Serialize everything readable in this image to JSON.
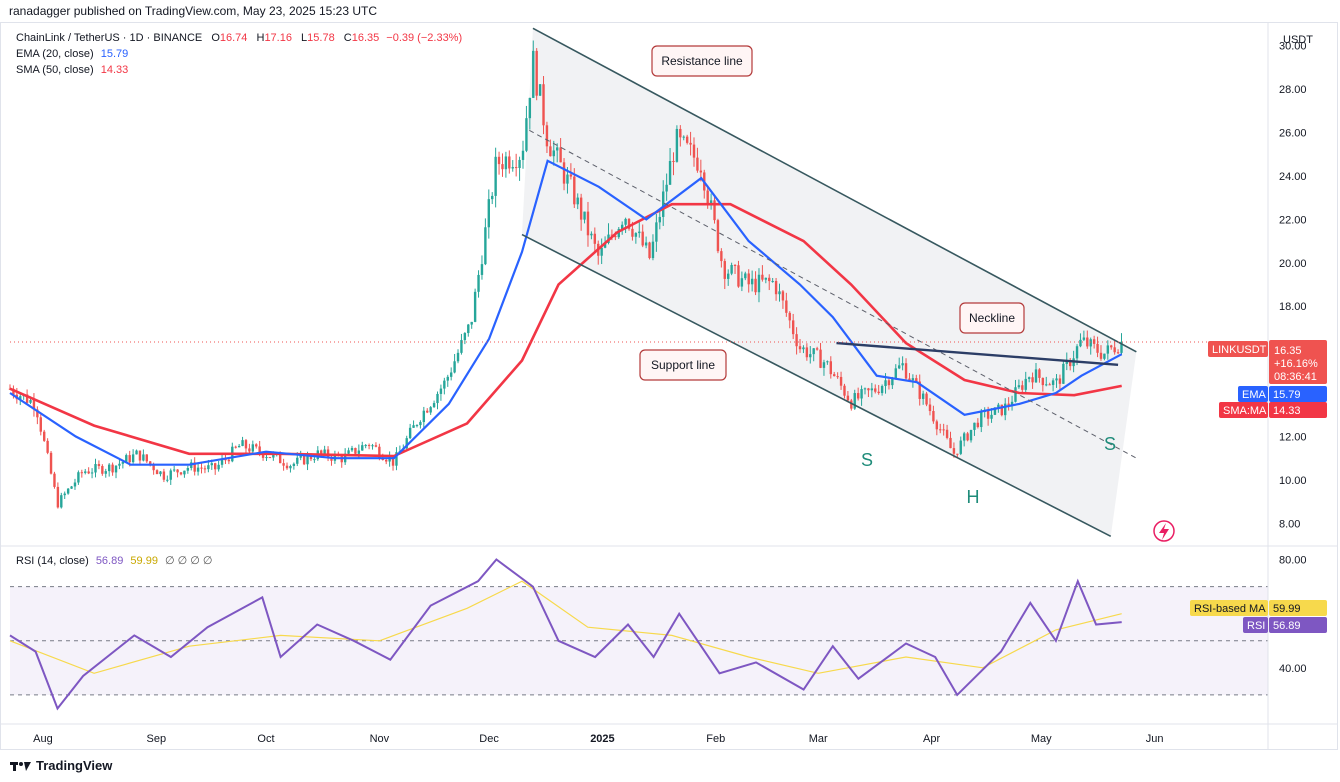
{
  "header": {
    "publisher": "ranadagger published on TradingView.com, May 23, 2025 15:23 UTC"
  },
  "legend": {
    "symbol": "ChainLink / TetherUS · 1D · BINANCE",
    "o": "16.74",
    "h": "17.16",
    "l": "15.78",
    "c": "16.35",
    "chg": "−0.39 (−2.33%)",
    "ema_label": "EMA (20, close)",
    "ema_value": "15.79",
    "sma_label": "SMA (50, close)",
    "sma_value": "14.33",
    "rsi_label": "RSI (14, close)",
    "rsi_value": "56.89",
    "rsi_ma_value": "59.99",
    "rsi_extra": "∅ ∅ ∅ ∅"
  },
  "currency": "USDT",
  "footer": {
    "brand": "TradingView"
  },
  "colors": {
    "up": "#26a69a",
    "down": "#ef5350",
    "ema": "#2962ff",
    "sma": "#f23645",
    "rsi": "#7e57c2",
    "rsi_ma": "#f7d94c",
    "channel": "#37585f"
  },
  "badges": {
    "symbol_label": "LINKUSDT",
    "price": "16.35",
    "change": "+16.16%",
    "countdown": "08:36:41",
    "ema": "EMA",
    "ema_val": "15.79",
    "sma": "SMA:MA",
    "sma_val": "14.33",
    "rsi_ma": "RSI-based MA",
    "rsi_ma_val": "59.99",
    "rsi": "RSI",
    "rsi_val": "56.89"
  },
  "annotations": {
    "resistance": "Resistance line",
    "support": "Support line",
    "neckline": "Neckline",
    "s1": "S",
    "h": "H",
    "s2": "S"
  },
  "chart_data": {
    "type": "line",
    "price_axis": {
      "ticks": [
        8.0,
        10.0,
        12.0,
        14.0,
        16.0,
        18.0,
        20.0,
        22.0,
        24.0,
        26.0,
        28.0,
        30.0
      ],
      "range": [
        7.0,
        31.0
      ]
    },
    "rsi_axis": {
      "ticks": [
        40.0,
        80.0
      ],
      "range": [
        20,
        85
      ],
      "bands": [
        30,
        70,
        50
      ]
    },
    "x_ticks": [
      "Aug",
      "Sep",
      "Oct",
      "Nov",
      "Dec",
      "2025",
      "Feb",
      "Mar",
      "Apr",
      "May",
      "Jun"
    ],
    "close_series": [
      {
        "date": "2024-07-23",
        "v": 14.2
      },
      {
        "date": "2024-07-30",
        "v": 13.5
      },
      {
        "date": "2024-08-05",
        "v": 8.9
      },
      {
        "date": "2024-08-12",
        "v": 10.4
      },
      {
        "date": "2024-08-20",
        "v": 10.6
      },
      {
        "date": "2024-08-27",
        "v": 11.2
      },
      {
        "date": "2024-09-03",
        "v": 10.2
      },
      {
        "date": "2024-09-10",
        "v": 10.6
      },
      {
        "date": "2024-09-17",
        "v": 10.5
      },
      {
        "date": "2024-09-24",
        "v": 11.6
      },
      {
        "date": "2024-10-01",
        "v": 11.2
      },
      {
        "date": "2024-10-08",
        "v": 10.7
      },
      {
        "date": "2024-10-15",
        "v": 11.2
      },
      {
        "date": "2024-10-22",
        "v": 11.0
      },
      {
        "date": "2024-10-29",
        "v": 11.7
      },
      {
        "date": "2024-11-05",
        "v": 10.8
      },
      {
        "date": "2024-11-12",
        "v": 12.9
      },
      {
        "date": "2024-11-19",
        "v": 14.5
      },
      {
        "date": "2024-11-26",
        "v": 17.2
      },
      {
        "date": "2024-12-03",
        "v": 24.6
      },
      {
        "date": "2024-12-10",
        "v": 25.1
      },
      {
        "date": "2024-12-13",
        "v": 29.3
      },
      {
        "date": "2024-12-17",
        "v": 25.7
      },
      {
        "date": "2024-12-24",
        "v": 23.2
      },
      {
        "date": "2024-12-31",
        "v": 20.2
      },
      {
        "date": "2025-01-07",
        "v": 22.3
      },
      {
        "date": "2025-01-14",
        "v": 20.2
      },
      {
        "date": "2025-01-21",
        "v": 25.6
      },
      {
        "date": "2025-01-28",
        "v": 24.6
      },
      {
        "date": "2025-02-03",
        "v": 19.8
      },
      {
        "date": "2025-02-10",
        "v": 19.0
      },
      {
        "date": "2025-02-17",
        "v": 19.1
      },
      {
        "date": "2025-02-24",
        "v": 16.1
      },
      {
        "date": "2025-03-03",
        "v": 15.4
      },
      {
        "date": "2025-03-10",
        "v": 13.6
      },
      {
        "date": "2025-03-17",
        "v": 14.2
      },
      {
        "date": "2025-03-24",
        "v": 15.3
      },
      {
        "date": "2025-03-31",
        "v": 13.4
      },
      {
        "date": "2025-04-07",
        "v": 11.2
      },
      {
        "date": "2025-04-14",
        "v": 12.8
      },
      {
        "date": "2025-04-21",
        "v": 13.3
      },
      {
        "date": "2025-04-28",
        "v": 14.9
      },
      {
        "date": "2025-05-05",
        "v": 14.4
      },
      {
        "date": "2025-05-12",
        "v": 16.4
      },
      {
        "date": "2025-05-18",
        "v": 15.8
      },
      {
        "date": "2025-05-23",
        "v": 16.35
      }
    ],
    "ema20": [
      {
        "date": "2024-07-23",
        "v": 14.0
      },
      {
        "date": "2024-08-10",
        "v": 12.0
      },
      {
        "date": "2024-08-25",
        "v": 10.7
      },
      {
        "date": "2024-09-10",
        "v": 10.7
      },
      {
        "date": "2024-10-01",
        "v": 11.3
      },
      {
        "date": "2024-10-20",
        "v": 11.0
      },
      {
        "date": "2024-11-05",
        "v": 11.0
      },
      {
        "date": "2024-11-20",
        "v": 13.5
      },
      {
        "date": "2024-12-01",
        "v": 16.5
      },
      {
        "date": "2024-12-10",
        "v": 20.5
      },
      {
        "date": "2024-12-17",
        "v": 24.7
      },
      {
        "date": "2024-12-31",
        "v": 23.5
      },
      {
        "date": "2025-01-13",
        "v": 22.0
      },
      {
        "date": "2025-01-28",
        "v": 23.9
      },
      {
        "date": "2025-02-10",
        "v": 21.0
      },
      {
        "date": "2025-02-24",
        "v": 19.0
      },
      {
        "date": "2025-03-05",
        "v": 17.5
      },
      {
        "date": "2025-03-17",
        "v": 14.8
      },
      {
        "date": "2025-03-28",
        "v": 14.5
      },
      {
        "date": "2025-04-10",
        "v": 13.0
      },
      {
        "date": "2025-04-25",
        "v": 13.5
      },
      {
        "date": "2025-05-05",
        "v": 14.0
      },
      {
        "date": "2025-05-12",
        "v": 14.8
      },
      {
        "date": "2025-05-23",
        "v": 15.79
      }
    ],
    "sma50": [
      {
        "date": "2024-07-23",
        "v": 14.2
      },
      {
        "date": "2024-08-15",
        "v": 12.5
      },
      {
        "date": "2024-09-10",
        "v": 11.2
      },
      {
        "date": "2024-10-05",
        "v": 11.2
      },
      {
        "date": "2024-11-05",
        "v": 11.1
      },
      {
        "date": "2024-11-25",
        "v": 12.6
      },
      {
        "date": "2024-12-10",
        "v": 15.5
      },
      {
        "date": "2024-12-20",
        "v": 19.0
      },
      {
        "date": "2025-01-05",
        "v": 21.4
      },
      {
        "date": "2025-01-20",
        "v": 22.7
      },
      {
        "date": "2025-02-05",
        "v": 22.7
      },
      {
        "date": "2025-02-25",
        "v": 21.0
      },
      {
        "date": "2025-03-10",
        "v": 19.0
      },
      {
        "date": "2025-03-25",
        "v": 16.3
      },
      {
        "date": "2025-04-10",
        "v": 14.6
      },
      {
        "date": "2025-04-25",
        "v": 14.0
      },
      {
        "date": "2025-05-10",
        "v": 13.9
      },
      {
        "date": "2025-05-23",
        "v": 14.33
      }
    ],
    "rsi14": [
      {
        "date": "2024-07-23",
        "v": 52
      },
      {
        "date": "2024-07-30",
        "v": 46
      },
      {
        "date": "2024-08-05",
        "v": 25
      },
      {
        "date": "2024-08-12",
        "v": 37
      },
      {
        "date": "2024-08-26",
        "v": 52
      },
      {
        "date": "2024-09-05",
        "v": 44
      },
      {
        "date": "2024-09-15",
        "v": 55
      },
      {
        "date": "2024-09-30",
        "v": 66
      },
      {
        "date": "2024-10-05",
        "v": 44
      },
      {
        "date": "2024-10-15",
        "v": 56
      },
      {
        "date": "2024-10-25",
        "v": 50
      },
      {
        "date": "2024-11-04",
        "v": 43
      },
      {
        "date": "2024-11-15",
        "v": 63
      },
      {
        "date": "2024-11-28",
        "v": 72
      },
      {
        "date": "2024-12-03",
        "v": 80
      },
      {
        "date": "2024-12-13",
        "v": 70
      },
      {
        "date": "2024-12-20",
        "v": 50
      },
      {
        "date": "2024-12-30",
        "v": 44
      },
      {
        "date": "2025-01-08",
        "v": 56
      },
      {
        "date": "2025-01-15",
        "v": 44
      },
      {
        "date": "2025-01-22",
        "v": 60
      },
      {
        "date": "2025-02-02",
        "v": 38
      },
      {
        "date": "2025-02-12",
        "v": 42
      },
      {
        "date": "2025-02-25",
        "v": 32
      },
      {
        "date": "2025-03-05",
        "v": 48
      },
      {
        "date": "2025-03-12",
        "v": 36
      },
      {
        "date": "2025-03-25",
        "v": 49
      },
      {
        "date": "2025-04-02",
        "v": 44
      },
      {
        "date": "2025-04-08",
        "v": 30
      },
      {
        "date": "2025-04-20",
        "v": 46
      },
      {
        "date": "2025-04-28",
        "v": 64
      },
      {
        "date": "2025-05-05",
        "v": 50
      },
      {
        "date": "2025-05-11",
        "v": 72
      },
      {
        "date": "2025-05-16",
        "v": 56
      },
      {
        "date": "2025-05-23",
        "v": 56.89
      }
    ],
    "rsi_ma": [
      {
        "date": "2024-07-23",
        "v": 50
      },
      {
        "date": "2024-08-15",
        "v": 38
      },
      {
        "date": "2024-09-10",
        "v": 48
      },
      {
        "date": "2024-10-05",
        "v": 52
      },
      {
        "date": "2024-11-01",
        "v": 50
      },
      {
        "date": "2024-11-25",
        "v": 62
      },
      {
        "date": "2024-12-10",
        "v": 72
      },
      {
        "date": "2024-12-28",
        "v": 55
      },
      {
        "date": "2025-01-20",
        "v": 52
      },
      {
        "date": "2025-02-10",
        "v": 44
      },
      {
        "date": "2025-03-01",
        "v": 38
      },
      {
        "date": "2025-03-25",
        "v": 44
      },
      {
        "date": "2025-04-15",
        "v": 40
      },
      {
        "date": "2025-05-05",
        "v": 54
      },
      {
        "date": "2025-05-23",
        "v": 59.99
      }
    ],
    "lines": {
      "resistance": [
        {
          "date": "2024-12-13",
          "v": 30.8
        },
        {
          "date": "2025-05-27",
          "v": 15.9
        }
      ],
      "support": [
        {
          "date": "2024-12-10",
          "v": 21.3
        },
        {
          "date": "2025-05-20",
          "v": 7.4
        }
      ],
      "midline": [
        {
          "date": "2024-12-12",
          "v": 26.1
        },
        {
          "date": "2025-05-27",
          "v": 11.0
        }
      ],
      "neckline": [
        {
          "date": "2025-03-06",
          "v": 16.3
        },
        {
          "date": "2025-05-22",
          "v": 15.3
        }
      ]
    }
  }
}
